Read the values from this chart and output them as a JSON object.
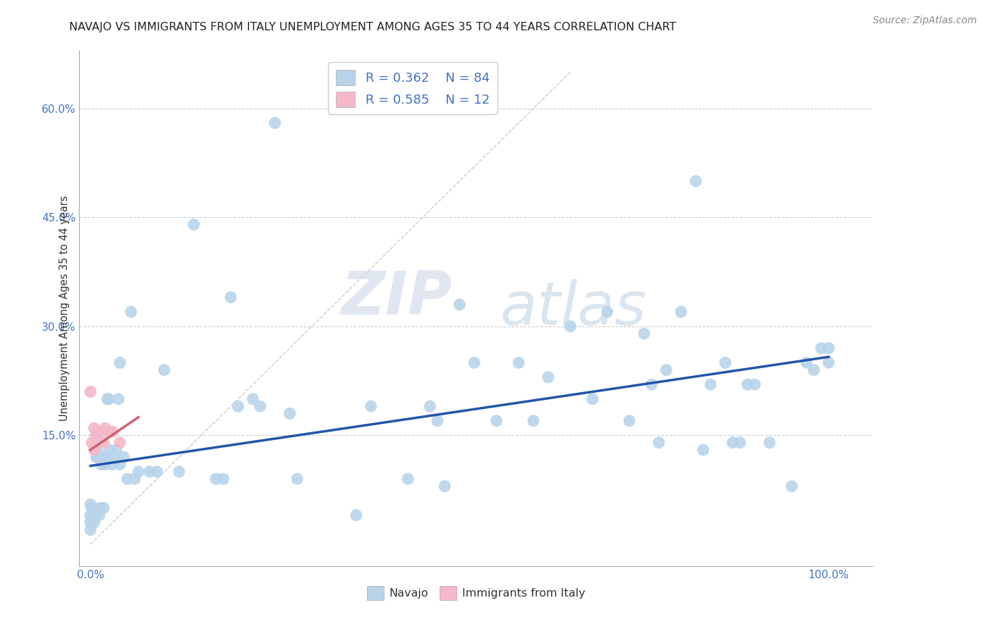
{
  "title": "NAVAJO VS IMMIGRANTS FROM ITALY UNEMPLOYMENT AMONG AGES 35 TO 44 YEARS CORRELATION CHART",
  "source": "Source: ZipAtlas.com",
  "ylabel": "Unemployment Among Ages 35 to 44 years",
  "navajo_R": 0.362,
  "navajo_N": 84,
  "italy_R": 0.585,
  "italy_N": 12,
  "navajo_color": "#b8d4ea",
  "italy_color": "#f4b8c8",
  "navajo_line_color": "#2255aa",
  "italy_line_color": "#d06070",
  "diagonal_color": "#cccccc",
  "background_color": "#ffffff",
  "watermark_zip": "ZIP",
  "watermark_atlas": "atlas",
  "xlim": [
    -0.015,
    1.06
  ],
  "ylim": [
    -0.03,
    0.68
  ],
  "navajo_trend_x0": 0.0,
  "navajo_trend_x1": 1.0,
  "navajo_trend_y0": 0.108,
  "navajo_trend_y1": 0.258,
  "italy_trend_x0": 0.0,
  "italy_trend_x1": 0.065,
  "italy_trend_y0": 0.13,
  "italy_trend_y1": 0.175,
  "navajo_x": [
    0.0,
    0.0,
    0.0,
    0.0,
    0.002,
    0.005,
    0.007,
    0.008,
    0.008,
    0.01,
    0.01,
    0.012,
    0.013,
    0.015,
    0.015,
    0.018,
    0.018,
    0.02,
    0.02,
    0.022,
    0.023,
    0.025,
    0.025,
    0.03,
    0.032,
    0.035,
    0.038,
    0.04,
    0.04,
    0.045,
    0.05,
    0.055,
    0.06,
    0.065,
    0.08,
    0.09,
    0.1,
    0.12,
    0.14,
    0.17,
    0.18,
    0.19,
    0.2,
    0.22,
    0.23,
    0.25,
    0.27,
    0.28,
    0.36,
    0.38,
    0.43,
    0.46,
    0.47,
    0.48,
    0.5,
    0.52,
    0.55,
    0.58,
    0.6,
    0.62,
    0.65,
    0.68,
    0.7,
    0.73,
    0.75,
    0.76,
    0.77,
    0.78,
    0.8,
    0.82,
    0.83,
    0.84,
    0.86,
    0.87,
    0.88,
    0.89,
    0.9,
    0.92,
    0.95,
    0.97,
    0.98,
    0.99,
    1.0,
    1.0
  ],
  "navajo_y": [
    0.02,
    0.03,
    0.04,
    0.055,
    0.05,
    0.03,
    0.04,
    0.12,
    0.13,
    0.12,
    0.14,
    0.04,
    0.05,
    0.12,
    0.11,
    0.05,
    0.115,
    0.11,
    0.12,
    0.115,
    0.2,
    0.13,
    0.2,
    0.11,
    0.12,
    0.13,
    0.2,
    0.11,
    0.25,
    0.12,
    0.09,
    0.32,
    0.09,
    0.1,
    0.1,
    0.1,
    0.24,
    0.1,
    0.44,
    0.09,
    0.09,
    0.34,
    0.19,
    0.2,
    0.19,
    0.58,
    0.18,
    0.09,
    0.04,
    0.19,
    0.09,
    0.19,
    0.17,
    0.08,
    0.33,
    0.25,
    0.17,
    0.25,
    0.17,
    0.23,
    0.3,
    0.2,
    0.32,
    0.17,
    0.29,
    0.22,
    0.14,
    0.24,
    0.32,
    0.5,
    0.13,
    0.22,
    0.25,
    0.14,
    0.14,
    0.22,
    0.22,
    0.14,
    0.08,
    0.25,
    0.24,
    0.27,
    0.25,
    0.27
  ],
  "italy_x": [
    0.0,
    0.002,
    0.005,
    0.005,
    0.007,
    0.01,
    0.015,
    0.018,
    0.02,
    0.025,
    0.03,
    0.04
  ],
  "italy_y": [
    0.21,
    0.14,
    0.13,
    0.16,
    0.15,
    0.155,
    0.155,
    0.14,
    0.16,
    0.155,
    0.155,
    0.14
  ]
}
